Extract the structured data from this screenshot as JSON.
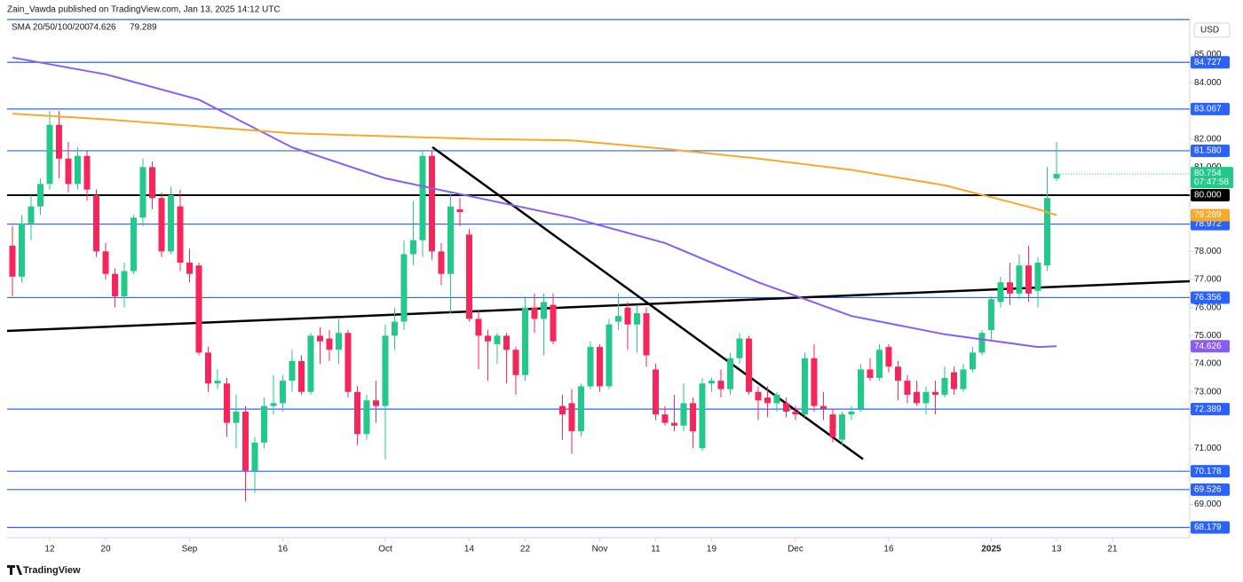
{
  "chart_data": {
    "type": "candlestick",
    "title": "Zain_Vawda published on TradingView.com, Jan 13, 2025 14:12 UTC",
    "indicator_label": "SMA 20/50/100/200",
    "currency": "USD",
    "brand": "TradingView",
    "up_color": "#22c98a",
    "down_color": "#f7265a",
    "xlim": [
      -0.57,
      126.29
    ],
    "ylim": [
      68.1,
      86.25
    ],
    "xticks": [
      {
        "value": 4,
        "label": "12"
      },
      {
        "value": 10,
        "label": "20"
      },
      {
        "value": 19,
        "label": "Sep"
      },
      {
        "value": 29,
        "label": "16"
      },
      {
        "value": 40,
        "label": "Oct"
      },
      {
        "value": 49,
        "label": "14"
      },
      {
        "value": 55,
        "label": "22"
      },
      {
        "value": 63,
        "label": "Nov"
      },
      {
        "value": 69,
        "label": "11"
      },
      {
        "value": 75,
        "label": "19"
      },
      {
        "value": 84,
        "label": "Dec"
      },
      {
        "value": 94,
        "label": "16"
      },
      {
        "value": 105,
        "label": "2025"
      },
      {
        "value": 112,
        "label": "13"
      },
      {
        "value": 118,
        "label": "21"
      }
    ],
    "yticks": [
      {
        "value": 85,
        "label": "85.000"
      },
      {
        "value": 84,
        "label": "84.000"
      },
      {
        "value": 82,
        "label": "82.000"
      },
      {
        "value": 81,
        "label": "81.000"
      },
      {
        "value": 78,
        "label": "78.000"
      },
      {
        "value": 77,
        "label": "77.000"
      },
      {
        "value": 76,
        "label": "76.000"
      },
      {
        "value": 75,
        "label": "75.000"
      },
      {
        "value": 74,
        "label": "74.000"
      },
      {
        "value": 73,
        "label": "73.000"
      },
      {
        "value": 71,
        "label": "71.000"
      },
      {
        "value": 69,
        "label": "69.000"
      }
    ],
    "open": [
      78.2,
      77.1,
      79.0,
      79.6,
      80.4,
      82.5,
      81.3,
      80.4,
      81.4,
      80.0,
      78.0,
      77.2,
      76.4,
      77.3,
      79.2,
      81.0,
      79.9,
      78.0,
      79.6,
      77.6,
      77.5,
      74.4,
      73.3,
      73.3,
      71.9,
      72.3,
      70.2,
      71.2,
      72.5,
      72.6,
      73.4,
      74.1,
      73.0,
      75.0,
      74.9,
      74.5,
      75.1,
      73.0,
      71.5,
      72.7,
      72.5,
      75.0,
      75.5,
      77.9,
      78.4,
      81.4,
      78.0,
      77.2,
      79.5,
      78.6,
      75.6,
      75.0,
      74.7,
      75.0,
      74.5,
      73.6,
      76.0,
      75.6,
      76.1,
      72.5,
      72.6,
      71.6,
      73.2,
      74.6,
      73.2,
      75.5,
      76.0,
      75.4,
      75.8,
      73.8,
      72.2,
      71.9,
      71.8,
      72.6,
      71.0,
      73.3,
      73.4,
      73.1,
      74.2,
      74.9,
      73.0,
      72.8,
      72.6,
      72.6,
      72.3,
      72.2,
      74.2,
      72.5,
      72.2,
      71.3,
      72.2,
      72.4,
      73.8,
      73.5,
      74.6,
      73.9,
      73.4,
      73.0,
      72.6,
      73.0,
      72.9,
      73.7,
      73.1,
      73.8,
      74.4,
      75.2,
      76.2,
      76.9,
      76.5,
      77.5,
      76.6,
      77.5,
      80.6
    ],
    "high": [
      78.9,
      79.3,
      80.0,
      80.6,
      83.0,
      83.0,
      81.9,
      81.7,
      81.6,
      80.2,
      78.3,
      77.4,
      77.6,
      79.3,
      81.3,
      81.2,
      80.1,
      80.3,
      80.2,
      78.1,
      77.6,
      74.6,
      73.8,
      73.5,
      72.9,
      72.5,
      71.4,
      72.8,
      73.6,
      73.6,
      74.5,
      74.3,
      75.1,
      75.3,
      75.2,
      75.6,
      75.2,
      73.2,
      72.9,
      73.4,
      75.4,
      76.0,
      78.4,
      79.8,
      81.6,
      81.6,
      78.3,
      80.1,
      79.9,
      78.8,
      75.9,
      75.2,
      75.1,
      75.1,
      74.6,
      76.4,
      76.5,
      76.5,
      76.5,
      72.9,
      73.1,
      73.3,
      74.8,
      74.7,
      75.6,
      76.5,
      76.2,
      76.1,
      76.0,
      74.0,
      72.5,
      72.9,
      73.3,
      72.8,
      73.5,
      73.5,
      73.8,
      74.4,
      75.1,
      75.0,
      73.2,
      73.2,
      73.0,
      72.8,
      72.5,
      74.4,
      74.7,
      73.0,
      72.4,
      72.3,
      72.5,
      74.0,
      74.2,
      74.7,
      74.7,
      74.1,
      73.6,
      73.4,
      73.2,
      73.4,
      73.9,
      73.9,
      74.0,
      74.6,
      75.2,
      76.4,
      77.1,
      77.6,
      77.9,
      78.2,
      77.8,
      81.0,
      81.9
    ],
    "low": [
      76.4,
      76.9,
      78.4,
      79.3,
      80.2,
      80.6,
      80.1,
      80.2,
      79.8,
      77.8,
      77.0,
      76.0,
      76.0,
      77.2,
      78.9,
      79.5,
      77.8,
      77.9,
      77.3,
      76.9,
      74.3,
      73.0,
      73.1,
      71.4,
      71.0,
      69.1,
      69.4,
      71.0,
      72.2,
      72.3,
      73.0,
      72.9,
      72.9,
      74.0,
      74.1,
      74.0,
      72.8,
      71.1,
      71.3,
      71.9,
      70.6,
      74.5,
      75.2,
      77.5,
      77.8,
      77.7,
      76.8,
      75.8,
      78.9,
      75.5,
      73.8,
      73.4,
      74.0,
      73.3,
      72.9,
      73.4,
      75.1,
      74.3,
      74.7,
      71.3,
      70.8,
      71.4,
      73.1,
      73.0,
      73.1,
      75.2,
      74.5,
      74.4,
      73.9,
      72.0,
      71.8,
      71.6,
      71.6,
      71.0,
      70.9,
      73.0,
      72.8,
      72.9,
      74.0,
      72.9,
      72.0,
      72.1,
      72.3,
      72.1,
      72.0,
      72.1,
      72.3,
      72.0,
      71.2,
      71.1,
      72.0,
      72.3,
      73.4,
      73.4,
      73.7,
      72.7,
      72.6,
      72.5,
      72.2,
      72.2,
      72.8,
      72.9,
      73.0,
      73.7,
      74.3,
      74.8,
      76.0,
      76.1,
      76.3,
      76.2,
      76.0,
      77.3,
      80.5
    ],
    "close": [
      77.1,
      79.0,
      79.6,
      80.4,
      82.5,
      81.3,
      80.4,
      81.4,
      80.2,
      78.0,
      77.2,
      76.4,
      77.3,
      79.2,
      81.0,
      79.9,
      78.0,
      80.0,
      77.6,
      77.2,
      74.4,
      73.3,
      73.4,
      71.9,
      72.3,
      70.2,
      71.2,
      72.5,
      72.6,
      73.4,
      74.1,
      73.0,
      75.0,
      74.8,
      74.5,
      75.1,
      73.0,
      71.5,
      72.7,
      72.5,
      75.0,
      75.5,
      77.9,
      78.4,
      81.4,
      78.0,
      77.2,
      79.6,
      79.4,
      75.6,
      75.0,
      74.8,
      75.0,
      74.5,
      73.6,
      76.0,
      75.6,
      76.2,
      74.8,
      72.2,
      71.6,
      73.2,
      74.6,
      73.2,
      75.4,
      75.7,
      75.4,
      75.8,
      74.3,
      72.2,
      71.9,
      71.8,
      72.6,
      71.6,
      73.3,
      73.4,
      73.1,
      74.2,
      74.9,
      73.0,
      72.7,
      72.6,
      72.9,
      72.3,
      72.2,
      74.2,
      72.5,
      72.4,
      71.4,
      72.2,
      72.3,
      73.8,
      73.5,
      74.5,
      73.9,
      73.4,
      72.9,
      72.6,
      73.0,
      72.9,
      73.5,
      73.1,
      73.8,
      74.4,
      75.1,
      76.3,
      76.9,
      76.5,
      77.5,
      76.5,
      77.6,
      79.9,
      80.754
    ],
    "series": [
      {
        "color": "#8a5cf5",
        "label": "74.626",
        "x": [
          0,
          10,
          20,
          30,
          40,
          50,
          60,
          70,
          80,
          90,
          100,
          110,
          112
        ],
        "values": [
          84.9,
          84.3,
          83.4,
          81.7,
          80.6,
          79.9,
          79.2,
          78.3,
          76.9,
          75.7,
          75.05,
          74.6,
          74.626
        ]
      },
      {
        "color": "#f7a928",
        "label": "79.289",
        "x": [
          0,
          10,
          20,
          30,
          40,
          50,
          60,
          70,
          80,
          90,
          100,
          110,
          112
        ],
        "values": [
          82.9,
          82.7,
          82.45,
          82.2,
          82.1,
          82.0,
          81.95,
          81.65,
          81.3,
          80.9,
          80.35,
          79.5,
          79.289
        ]
      }
    ],
    "levels": [
      {
        "value": 84.727,
        "label": "84.727",
        "color": "#2962ff"
      },
      {
        "value": 83.067,
        "label": "83.067",
        "color": "#2962ff"
      },
      {
        "value": 81.58,
        "label": "81.580",
        "color": "#2962ff"
      },
      {
        "value": 80,
        "label": "80.000",
        "color": "#000000"
      },
      {
        "value": 78.972,
        "label": "78.972",
        "color": "#2962ff"
      },
      {
        "value": 76.356,
        "label": "76.356",
        "color": "#2962ff"
      },
      {
        "value": 72.389,
        "label": "72.389",
        "color": "#2962ff"
      },
      {
        "value": 70.178,
        "label": "70.178",
        "color": "#2962ff"
      },
      {
        "value": 69.526,
        "label": "69.526",
        "color": "#2962ff"
      },
      {
        "value": 68.179,
        "label": "68.179",
        "color": "#2962ff"
      }
    ],
    "trendlines": [
      {
        "x": [
          -0.57,
          126.29
        ],
        "values": [
          75.17,
          76.94
        ]
      },
      {
        "x": [
          45.05,
          91.24
        ],
        "values": [
          81.71,
          70.61
        ]
      }
    ],
    "last_price": {
      "value": 80.754,
      "label": "80.754",
      "countdown": "07:47:58"
    }
  }
}
